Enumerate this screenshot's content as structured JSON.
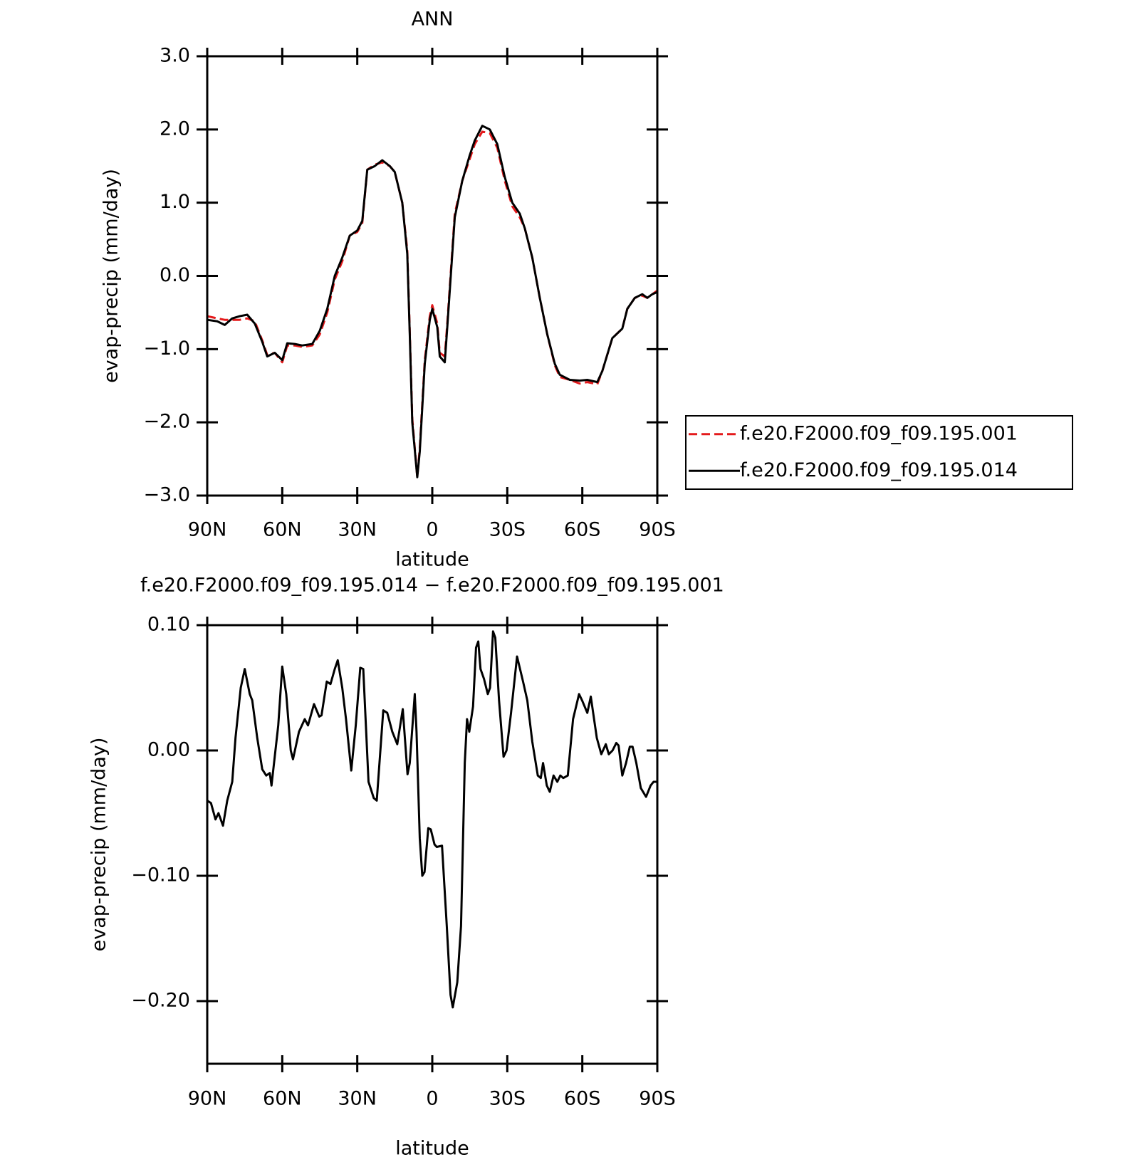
{
  "chart_data": [
    {
      "type": "line",
      "title": "ANN",
      "x_label": "latitude",
      "y_label": "evap-precip (mm/day)",
      "x": [
        90,
        86,
        83,
        80,
        77,
        74,
        71,
        68,
        66,
        63,
        60,
        58,
        55,
        52,
        48,
        45,
        42,
        39,
        36,
        33,
        30,
        28,
        26,
        23,
        20,
        17,
        15,
        12,
        10,
        9,
        8,
        6,
        5,
        3,
        1,
        0,
        -2,
        -3,
        -5,
        -6,
        -8,
        -9,
        -12,
        -15,
        -17,
        -20,
        -23,
        -26,
        -29,
        -32,
        -35,
        -37,
        -40,
        -43,
        -46,
        -49,
        -51,
        -55,
        -59,
        -62,
        -66,
        -68,
        -72,
        -76,
        -78,
        -81,
        -84,
        -86,
        -88,
        -90
      ],
      "series": [
        {
          "name": "f.e20.F2000.f09_f09.195.001",
          "color": "#e41a1c",
          "line_style": "dashed",
          "values": [
            -0.55,
            -0.58,
            -0.6,
            -0.6,
            -0.6,
            -0.58,
            -0.62,
            -0.88,
            -1.08,
            -1.05,
            -1.18,
            -0.95,
            -0.95,
            -0.97,
            -0.95,
            -0.8,
            -0.5,
            -0.05,
            0.2,
            0.55,
            0.6,
            0.72,
            1.45,
            1.52,
            1.55,
            1.5,
            1.42,
            1.0,
            0.35,
            -0.75,
            -1.95,
            -2.75,
            -2.35,
            -1.15,
            -0.55,
            -0.4,
            -0.65,
            -1.05,
            -1.1,
            -0.65,
            0.35,
            0.85,
            1.3,
            1.6,
            1.8,
            1.97,
            1.95,
            1.75,
            1.3,
            0.95,
            0.8,
            0.65,
            0.25,
            -0.3,
            -0.8,
            -1.22,
            -1.38,
            -1.42,
            -1.47,
            -1.45,
            -1.48,
            -1.3,
            -0.85,
            -0.72,
            -0.45,
            -0.3,
            -0.27,
            -0.3,
            -0.25,
            -0.2
          ]
        },
        {
          "name": "f.e20.F2000.f09_f09.195.014",
          "color": "#000000",
          "line_style": "solid",
          "values": [
            -0.6,
            -0.62,
            -0.67,
            -0.58,
            -0.55,
            -0.53,
            -0.65,
            -0.9,
            -1.1,
            -1.05,
            -1.15,
            -0.92,
            -0.93,
            -0.95,
            -0.93,
            -0.75,
            -0.45,
            0.0,
            0.25,
            0.55,
            0.62,
            0.75,
            1.45,
            1.5,
            1.58,
            1.5,
            1.42,
            1.0,
            0.3,
            -0.8,
            -2.0,
            -2.75,
            -2.4,
            -1.2,
            -0.6,
            -0.45,
            -0.7,
            -1.1,
            -1.18,
            -0.7,
            0.3,
            0.8,
            1.3,
            1.65,
            1.85,
            2.05,
            2.0,
            1.8,
            1.35,
            1.0,
            0.85,
            0.65,
            0.25,
            -0.3,
            -0.8,
            -1.2,
            -1.35,
            -1.42,
            -1.43,
            -1.42,
            -1.45,
            -1.3,
            -0.85,
            -0.72,
            -0.45,
            -0.3,
            -0.25,
            -0.3,
            -0.25,
            -0.22
          ]
        }
      ],
      "xlim": [
        90,
        -90
      ],
      "xticks": [
        {
          "value": 90,
          "label": "90N"
        },
        {
          "value": 60,
          "label": "60N"
        },
        {
          "value": 30,
          "label": "30N"
        },
        0,
        {
          "value": -30,
          "label": "30S"
        },
        {
          "value": -60,
          "label": "60S"
        },
        {
          "value": -90,
          "label": "90S"
        }
      ],
      "ylim": [
        -3,
        3
      ],
      "yticks": [
        {
          "value": 3,
          "label": "3.0"
        },
        {
          "value": 2,
          "label": "2.0"
        },
        {
          "value": 1,
          "label": "1.0"
        },
        {
          "value": 0,
          "label": "0.0"
        },
        {
          "value": -1,
          "label": "−1.0"
        },
        {
          "value": -2,
          "label": "−2.0"
        },
        {
          "value": -3,
          "label": "−3.0"
        }
      ],
      "grid": false,
      "legend": "right"
    },
    {
      "type": "line",
      "title": "f.e20.F2000.f09_f09.195.014 − f.e20.F2000.f09_f09.195.001",
      "x_label": "latitude",
      "y_label": "evap-precip (mm/day)",
      "x": [
        90,
        88.5,
        86.7,
        85.5,
        83.7,
        82,
        80,
        78.7,
        76.6,
        75,
        73,
        72,
        70,
        68,
        66.4,
        65,
        64.3,
        61.6,
        60,
        58.4,
        56.6,
        55.7,
        53.3,
        51,
        49.7,
        47.3,
        45.2,
        44.3,
        42.2,
        40.7,
        39,
        37.8,
        36,
        34.5,
        32.4,
        30.6,
        28.8,
        27.6,
        25.5,
        23.4,
        22.2,
        19.6,
        18,
        16,
        14,
        11.8,
        9.9,
        9,
        7,
        6.3,
        5,
        4,
        3.1,
        1.6,
        0.6,
        -0.9,
        -1.8,
        -3.9,
        -5.8,
        -7.3,
        -8.2,
        -10,
        -11.5,
        -13,
        -13.9,
        -14.8,
        -16.3,
        -17.5,
        -18.4,
        -19.3,
        -20.7,
        -22.2,
        -23.1,
        -24.3,
        -25.2,
        -26.7,
        -28.5,
        -29.7,
        -31.5,
        -33.9,
        -36.3,
        -38,
        -40,
        -42.2,
        -43.4,
        -44.3,
        -45.8,
        -47,
        -48.5,
        -50,
        -51.2,
        -52.4,
        -54.2,
        -56.3,
        -58.7,
        -59.9,
        -62,
        -63.4,
        -65.8,
        -67.6,
        -69.4,
        -70.6,
        -72.1,
        -73.6,
        -74.5,
        -76,
        -77.5,
        -79,
        -80.1,
        -81.6,
        -83.4,
        -85.5,
        -87.3,
        -88.5,
        -90
      ],
      "series": [
        {
          "color": "#000000",
          "line_style": "solid",
          "values": [
            -0.04,
            -0.042,
            -0.055,
            -0.05,
            -0.06,
            -0.04,
            -0.025,
            0.01,
            0.05,
            0.065,
            0.045,
            0.04,
            0.01,
            -0.015,
            -0.02,
            -0.018,
            -0.028,
            0.02,
            0.067,
            0.045,
            0.0,
            -0.007,
            0.015,
            0.025,
            0.02,
            0.037,
            0.027,
            0.028,
            0.055,
            0.053,
            0.065,
            0.072,
            0.05,
            0.025,
            -0.016,
            0.02,
            0.066,
            0.065,
            -0.025,
            -0.038,
            -0.04,
            0.032,
            0.03,
            0.015,
            0.005,
            0.033,
            -0.019,
            -0.01,
            0.045,
            0.015,
            -0.07,
            -0.1,
            -0.097,
            -0.062,
            -0.063,
            -0.075,
            -0.077,
            -0.076,
            -0.14,
            -0.195,
            -0.205,
            -0.185,
            -0.14,
            -0.01,
            0.025,
            0.015,
            0.035,
            0.082,
            0.087,
            0.065,
            0.057,
            0.045,
            0.05,
            0.095,
            0.09,
            0.04,
            -0.005,
            0.0,
            0.03,
            0.075,
            0.055,
            0.04,
            0.007,
            -0.02,
            -0.022,
            -0.01,
            -0.028,
            -0.033,
            -0.02,
            -0.025,
            -0.02,
            -0.022,
            -0.02,
            0.025,
            0.045,
            0.04,
            0.03,
            0.043,
            0.01,
            -0.003,
            0.005,
            -0.003,
            0.0,
            0.006,
            0.004,
            -0.02,
            -0.01,
            0.003,
            0.003,
            -0.01,
            -0.03,
            -0.037,
            -0.028,
            -0.025,
            -0.025
          ]
        }
      ],
      "xlim": [
        90,
        -90
      ],
      "xticks": [
        {
          "value": 90,
          "label": "90N"
        },
        {
          "value": 60,
          "label": "60N"
        },
        {
          "value": 30,
          "label": "30N"
        },
        0,
        {
          "value": -30,
          "label": "30S"
        },
        {
          "value": -60,
          "label": "60S"
        },
        {
          "value": -90,
          "label": "90S"
        }
      ],
      "ylim": [
        -0.25,
        0.1
      ],
      "yticks": [
        {
          "value": 0.1,
          "label": "0.10"
        },
        {
          "value": 0,
          "label": "0.00"
        },
        {
          "value": -0.1,
          "label": "−0.10"
        },
        {
          "value": -0.2,
          "label": "−0.20"
        }
      ],
      "grid": false
    }
  ]
}
